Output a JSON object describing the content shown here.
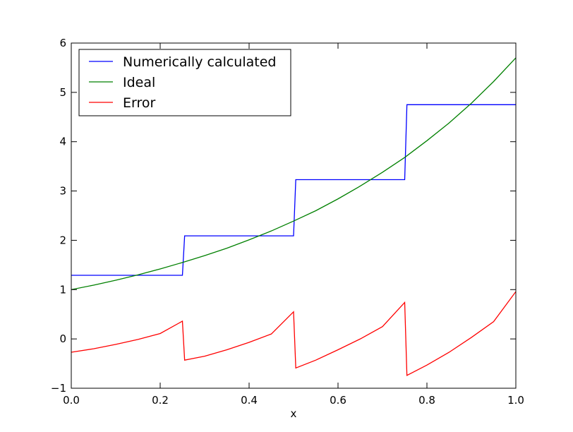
{
  "chart_data": {
    "type": "line",
    "title": "",
    "xlabel": "x",
    "ylabel": "",
    "xlim": [
      0.0,
      1.0
    ],
    "ylim": [
      -1,
      6
    ],
    "x_ticks": [
      "0.0",
      "0.2",
      "0.4",
      "0.6",
      "0.8",
      "1.0"
    ],
    "y_ticks": [
      "−1",
      "0",
      "1",
      "2",
      "3",
      "4",
      "5",
      "6"
    ],
    "grid": false,
    "legend_position": "top-left",
    "series": [
      {
        "name": "Numerically calculated",
        "color": "#0000ff",
        "x": [
          0.0,
          0.25,
          0.255,
          0.5,
          0.505,
          0.75,
          0.755,
          1.0
        ],
        "y": [
          1.29,
          1.29,
          2.09,
          2.09,
          3.23,
          3.23,
          4.75,
          4.75
        ]
      },
      {
        "name": "Ideal",
        "color": "#008000",
        "x": [
          0.0,
          0.05,
          0.1,
          0.15,
          0.2,
          0.25,
          0.3,
          0.35,
          0.4,
          0.45,
          0.5,
          0.55,
          0.6,
          0.65,
          0.7,
          0.75,
          0.8,
          0.85,
          0.9,
          0.95,
          1.0
        ],
        "y": [
          1.0,
          1.09,
          1.19,
          1.3,
          1.42,
          1.55,
          1.69,
          1.84,
          2.01,
          2.19,
          2.39,
          2.6,
          2.84,
          3.1,
          3.38,
          3.68,
          4.02,
          4.38,
          4.78,
          5.22,
          5.7
        ]
      },
      {
        "name": "Error",
        "color": "#ff0000",
        "x": [
          0.0,
          0.05,
          0.1,
          0.15,
          0.2,
          0.25,
          0.255,
          0.3,
          0.35,
          0.4,
          0.45,
          0.5,
          0.505,
          0.55,
          0.6,
          0.65,
          0.7,
          0.75,
          0.755,
          0.8,
          0.85,
          0.9,
          0.95,
          1.0
        ],
        "y": [
          -0.27,
          -0.2,
          -0.11,
          -0.01,
          0.11,
          0.36,
          -0.43,
          -0.35,
          -0.22,
          -0.07,
          0.1,
          0.55,
          -0.59,
          -0.43,
          -0.22,
          0.0,
          0.25,
          0.74,
          -0.74,
          -0.53,
          -0.27,
          0.03,
          0.35,
          0.96
        ]
      }
    ]
  }
}
